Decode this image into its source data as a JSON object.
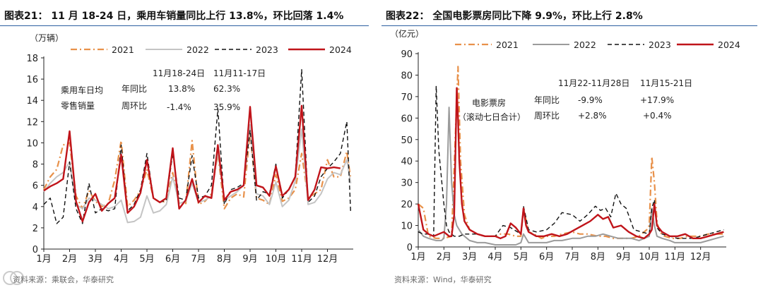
{
  "charts": [
    {
      "id": "left",
      "title": "图表21：  11 月 18-24 日，乘用车销量同比上行 13.8%，环比回落 1.4%",
      "unit": "（万辆）",
      "source": "资料来源：乘联会，华泰研究",
      "anno_label_1": "乘用车日均",
      "anno_label_2": "零售销量",
      "anno_period_1": "11月18-24日",
      "anno_period_2": "11月11-17日",
      "anno_row1_label": "年同比",
      "anno_row1_v1": "13.8%",
      "anno_row1_v2": "62.3%",
      "anno_row2_label": "周环比",
      "anno_row2_v1": "-1.4%",
      "anno_row2_v2": "35.9%"
    },
    {
      "id": "right",
      "title": "图表22：  全国电影票房同比下降 9.9%，环比上行 2.8%",
      "unit": "（亿元）",
      "source": "资料来源：Wind，华泰研究",
      "anno_label_1": "电影票房",
      "anno_label_2": "（滚动七日合计）",
      "anno_period_1": "11月22-11月28日",
      "anno_period_2": "11月15-21日",
      "anno_row1_label": "年同比",
      "anno_row1_v1": "-9.9%",
      "anno_row1_v2": "+17.9%",
      "anno_row2_label": "周环比",
      "anno_row2_v1": "+2.8%",
      "anno_row2_v2": "+0.4%"
    }
  ],
  "colors": {
    "s2021": "#e8914a",
    "s2022": "#c4c4c4",
    "s2022_right": "#9b9b9b",
    "s2023": "#111111",
    "s2024": "#c0141a",
    "rule": "#2b5fa0"
  },
  "chart_data": [
    {
      "type": "line",
      "title": "图表21：  11 月 18-24 日，乘用车销量同比上行 13.8%，环比回落 1.4%",
      "ylabel": "（万辆）",
      "ylim": [
        0,
        18
      ],
      "yticks": [
        0,
        2,
        4,
        6,
        8,
        10,
        12,
        14,
        16,
        18
      ],
      "xlim": [
        1,
        13
      ],
      "xticks": [
        1,
        2,
        3,
        4,
        5,
        6,
        7,
        8,
        9,
        10,
        11,
        12
      ],
      "xtick_labels": [
        "1月",
        "2月",
        "3月",
        "4月",
        "5月",
        "6月",
        "7月",
        "8月",
        "9月",
        "10月",
        "11月",
        "12月"
      ],
      "legend": [
        "2021",
        "2022",
        "2023",
        "2024"
      ],
      "series": [
        {
          "name": "2021",
          "style": "dashdot",
          "x": [
            1.0,
            1.25,
            1.5,
            1.75,
            2.0,
            2.25,
            2.5,
            2.75,
            3.0,
            3.25,
            3.5,
            3.75,
            4.0,
            4.25,
            4.5,
            4.75,
            5.0,
            5.25,
            5.5,
            5.75,
            6.0,
            6.25,
            6.5,
            6.75,
            7.0,
            7.25,
            7.5,
            7.75,
            8.0,
            8.25,
            8.5,
            8.75,
            9.0,
            9.25,
            9.5,
            9.75,
            10.0,
            10.25,
            10.5,
            10.75,
            11.0,
            11.25,
            11.5,
            11.75,
            12.0,
            12.25,
            12.5,
            12.75,
            12.9
          ],
          "y": [
            5.6,
            6.8,
            7.5,
            9.8,
            10.0,
            5.0,
            3.8,
            5.5,
            4.5,
            4.0,
            4.3,
            6.5,
            10.2,
            4.0,
            4.6,
            5.5,
            7.5,
            4.8,
            4.4,
            4.5,
            7.2,
            4.3,
            4.2,
            10.2,
            4.2,
            4.5,
            5.2,
            9.0,
            3.8,
            4.8,
            5.2,
            4.9,
            11.0,
            4.8,
            4.6,
            4.2,
            7.0,
            4.5,
            4.8,
            5.6,
            9.0,
            4.8,
            5.2,
            5.6,
            8.4,
            6.8,
            6.8,
            9.2,
            6.6
          ]
        },
        {
          "name": "2022",
          "style": "solid",
          "x": [
            1.0,
            1.25,
            1.5,
            1.75,
            2.0,
            2.25,
            2.5,
            2.75,
            3.0,
            3.25,
            3.5,
            3.75,
            4.0,
            4.25,
            4.5,
            4.75,
            5.0,
            5.25,
            5.5,
            5.75,
            6.0,
            6.25,
            6.5,
            6.75,
            7.0,
            7.25,
            7.5,
            7.75,
            8.0,
            8.25,
            8.5,
            8.75,
            9.0,
            9.25,
            9.5,
            9.75,
            10.0,
            10.25,
            10.5,
            10.75,
            11.0,
            11.25,
            11.5,
            11.75,
            12.0,
            12.25,
            12.5,
            12.75,
            12.9
          ],
          "y": [
            5.4,
            6.2,
            6.8,
            7.2,
            8.2,
            4.2,
            3.8,
            4.8,
            4.6,
            4.2,
            3.8,
            4.0,
            4.6,
            2.5,
            2.6,
            3.0,
            5.0,
            3.4,
            3.6,
            4.2,
            6.8,
            4.3,
            4.5,
            6.2,
            4.4,
            4.6,
            5.0,
            9.2,
            4.6,
            5.0,
            5.4,
            6.0,
            11.7,
            5.2,
            5.0,
            4.2,
            6.3,
            4.0,
            4.6,
            6.4,
            11.3,
            4.2,
            4.4,
            5.2,
            6.6,
            7.2,
            7.0,
            8.4,
            6.2
          ]
        },
        {
          "name": "2023",
          "style": "dashed",
          "x": [
            1.0,
            1.25,
            1.5,
            1.75,
            2.0,
            2.25,
            2.5,
            2.75,
            3.0,
            3.25,
            3.5,
            3.75,
            4.0,
            4.25,
            4.5,
            4.75,
            5.0,
            5.25,
            5.5,
            5.75,
            6.0,
            6.25,
            6.5,
            6.75,
            7.0,
            7.25,
            7.5,
            7.75,
            8.0,
            8.25,
            8.5,
            8.75,
            9.0,
            9.25,
            9.5,
            9.75,
            10.0,
            10.25,
            10.5,
            10.75,
            11.0,
            11.25,
            11.5,
            11.75,
            12.0,
            12.25,
            12.5,
            12.75,
            12.9
          ],
          "y": [
            4.2,
            4.8,
            2.4,
            3.0,
            8.2,
            3.8,
            2.4,
            6.2,
            3.4,
            3.8,
            3.6,
            3.8,
            9.8,
            3.6,
            4.2,
            5.6,
            9.0,
            4.8,
            4.4,
            4.6,
            9.0,
            4.8,
            4.6,
            8.8,
            4.8,
            5.0,
            6.0,
            13.2,
            4.2,
            5.6,
            5.8,
            6.2,
            11.2,
            4.6,
            5.4,
            5.2,
            8.0,
            4.8,
            5.6,
            6.8,
            16.9,
            4.4,
            5.0,
            6.8,
            7.6,
            8.2,
            9.0,
            12.0,
            3.4
          ]
        },
        {
          "name": "2024",
          "style": "solid",
          "x": [
            1.0,
            1.25,
            1.5,
            1.75,
            2.0,
            2.25,
            2.5,
            2.75,
            3.0,
            3.25,
            3.5,
            3.75,
            4.0,
            4.25,
            4.5,
            4.75,
            5.0,
            5.25,
            5.5,
            5.75,
            6.0,
            6.25,
            6.5,
            6.75,
            7.0,
            7.25,
            7.5,
            7.75,
            8.0,
            8.25,
            8.5,
            8.75,
            9.0,
            9.25,
            9.5,
            9.75,
            10.0,
            10.25,
            10.5,
            10.75,
            11.0,
            11.25,
            11.5,
            11.75,
            12.0,
            12.25,
            12.5
          ],
          "y": [
            5.5,
            5.9,
            6.2,
            6.6,
            11.1,
            4.5,
            2.6,
            4.4,
            5.2,
            3.6,
            4.3,
            4.8,
            8.9,
            3.4,
            4.0,
            5.3,
            8.4,
            4.8,
            4.4,
            4.8,
            9.5,
            3.8,
            4.6,
            6.6,
            4.4,
            5.0,
            4.8,
            9.8,
            4.6,
            5.4,
            5.6,
            6.0,
            13.4,
            6.0,
            5.8,
            5.0,
            7.8,
            5.0,
            5.6,
            6.8,
            13.5,
            4.6,
            5.6,
            7.7,
            7.6,
            7.7,
            7.6
          ]
        }
      ]
    },
    {
      "type": "line",
      "title": "图表22：  全国电影票房同比下降 9.9%，环比上行 2.8%",
      "ylabel": "（亿元）",
      "ylim": [
        0,
        90
      ],
      "yticks": [
        0,
        10,
        20,
        30,
        40,
        50,
        60,
        70,
        80,
        90
      ],
      "xlim": [
        1,
        13
      ],
      "xticks": [
        1,
        2,
        3,
        4,
        5,
        6,
        7,
        8,
        9,
        10,
        11,
        12
      ],
      "xtick_labels": [
        "1月",
        "2月",
        "3月",
        "4月",
        "5月",
        "6月",
        "7月",
        "8月",
        "9月",
        "10月",
        "11月",
        "12月"
      ],
      "legend": [
        "2021",
        "2022",
        "2023",
        "2024"
      ],
      "series": [
        {
          "name": "2021",
          "style": "dashdot",
          "x": [
            1.0,
            1.2,
            1.4,
            1.7,
            2.0,
            2.3,
            2.55,
            2.65,
            2.8,
            3.0,
            3.3,
            3.6,
            4.0,
            4.2,
            4.5,
            4.8,
            5.0,
            5.1,
            5.3,
            5.5,
            5.8,
            6.0,
            6.3,
            6.6,
            7.0,
            7.3,
            7.6,
            8.0,
            8.3,
            8.6,
            9.0,
            9.3,
            9.6,
            9.9,
            10.0,
            10.1,
            10.2,
            10.3,
            10.4,
            10.6,
            10.9,
            11.2,
            11.5,
            11.8,
            12.0,
            12.3,
            12.6,
            12.9
          ],
          "y": [
            20,
            18,
            5,
            4,
            4,
            5,
            84,
            40,
            15,
            8,
            6,
            5,
            5,
            6,
            6,
            5,
            5,
            18,
            7,
            6,
            4,
            5,
            5,
            6,
            7,
            6,
            6,
            5,
            5,
            4,
            4,
            4,
            5,
            8,
            10,
            42,
            30,
            12,
            7,
            5,
            4,
            4,
            5,
            5,
            5,
            6,
            6,
            6
          ]
        },
        {
          "name": "2022",
          "style": "solid",
          "x": [
            1.0,
            1.2,
            1.4,
            1.7,
            1.9,
            2.0,
            2.1,
            2.2,
            2.3,
            2.4,
            2.5,
            2.7,
            3.0,
            3.3,
            3.6,
            4.0,
            4.4,
            4.8,
            5.0,
            5.1,
            5.3,
            5.6,
            6.0,
            6.3,
            6.6,
            7.0,
            7.3,
            7.6,
            7.9,
            8.2,
            8.5,
            8.8,
            9.0,
            9.3,
            9.6,
            10.0,
            10.1,
            10.2,
            10.3,
            10.5,
            10.8,
            11.0,
            11.3,
            11.6,
            12.0,
            12.3,
            12.6,
            12.9
          ],
          "y": [
            8,
            5,
            4,
            3,
            3,
            4,
            20,
            65,
            30,
            15,
            10,
            6,
            3,
            2,
            2,
            1,
            1,
            1,
            2,
            6,
            2,
            2,
            2,
            3,
            3,
            4,
            4,
            5,
            5,
            6,
            5,
            4,
            4,
            4,
            3,
            5,
            18,
            10,
            5,
            4,
            3,
            2,
            2,
            2,
            2,
            3,
            4,
            5
          ]
        },
        {
          "name": "2023",
          "style": "dashed",
          "x": [
            1.0,
            1.2,
            1.4,
            1.6,
            1.7,
            1.8,
            2.0,
            2.1,
            2.2,
            2.3,
            2.4,
            2.6,
            2.8,
            3.0,
            3.3,
            3.6,
            4.0,
            4.3,
            4.6,
            5.0,
            5.1,
            5.3,
            5.6,
            6.0,
            6.3,
            6.6,
            7.0,
            7.3,
            7.6,
            7.9,
            8.1,
            8.3,
            8.5,
            8.7,
            8.9,
            9.1,
            9.4,
            9.7,
            10.0,
            10.1,
            10.2,
            10.3,
            10.5,
            10.8,
            11.1,
            11.4,
            11.7,
            12.0,
            12.3,
            12.6,
            12.9
          ],
          "y": [
            7,
            6,
            6,
            5,
            75,
            45,
            20,
            10,
            7,
            6,
            5,
            5,
            6,
            6,
            6,
            5,
            5,
            10,
            9,
            6,
            19,
            8,
            7,
            8,
            11,
            16,
            15,
            12,
            15,
            19,
            17,
            18,
            14,
            25,
            20,
            18,
            8,
            7,
            6,
            18,
            22,
            9,
            6,
            5,
            4,
            4,
            4,
            5,
            6,
            7,
            8
          ]
        },
        {
          "name": "2024",
          "style": "solid",
          "x": [
            1.0,
            1.2,
            1.4,
            1.6,
            1.8,
            2.0,
            2.1,
            2.2,
            2.3,
            2.4,
            2.5,
            2.55,
            2.6,
            2.7,
            2.8,
            3.0,
            3.3,
            3.6,
            4.0,
            4.2,
            4.4,
            4.6,
            4.8,
            5.0,
            5.1,
            5.2,
            5.3,
            5.6,
            5.9,
            6.2,
            6.5,
            6.8,
            7.1,
            7.4,
            7.7,
            8.0,
            8.2,
            8.4,
            8.6,
            8.9,
            9.2,
            9.5,
            9.8,
            10.0,
            10.1,
            10.2,
            10.3,
            10.5,
            10.8,
            11.1,
            11.4,
            11.7,
            12.0,
            12.3,
            12.6,
            12.9
          ],
          "y": [
            20,
            8,
            6,
            5,
            6,
            7,
            6,
            5,
            5,
            15,
            74,
            60,
            40,
            20,
            12,
            8,
            6,
            5,
            5,
            4,
            5,
            11,
            9,
            6,
            18,
            10,
            7,
            5,
            5,
            6,
            5,
            6,
            8,
            10,
            12,
            15,
            13,
            14,
            9,
            10,
            7,
            5,
            4,
            6,
            8,
            20,
            10,
            7,
            5,
            5,
            6,
            4,
            4,
            5,
            6,
            7
          ]
        }
      ]
    }
  ]
}
